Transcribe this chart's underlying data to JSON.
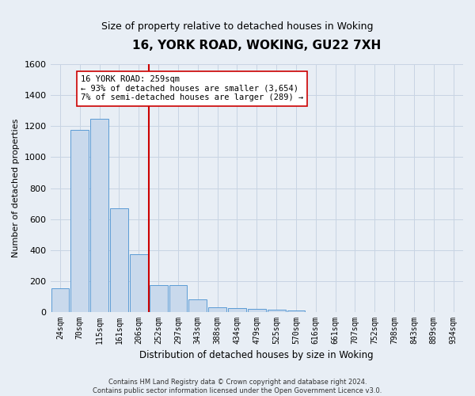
{
  "title": "16, YORK ROAD, WOKING, GU22 7XH",
  "subtitle": "Size of property relative to detached houses in Woking",
  "xlabel": "Distribution of detached houses by size in Woking",
  "ylabel": "Number of detached properties",
  "categories": [
    "24sqm",
    "70sqm",
    "115sqm",
    "161sqm",
    "206sqm",
    "252sqm",
    "297sqm",
    "343sqm",
    "388sqm",
    "434sqm",
    "479sqm",
    "525sqm",
    "570sqm",
    "616sqm",
    "661sqm",
    "707sqm",
    "752sqm",
    "798sqm",
    "843sqm",
    "889sqm",
    "934sqm"
  ],
  "values": [
    150,
    1175,
    1250,
    670,
    370,
    170,
    170,
    80,
    30,
    25,
    20,
    15,
    10,
    0,
    0,
    0,
    0,
    0,
    0,
    0,
    0
  ],
  "bar_color": "#c9d9ec",
  "bar_edgecolor": "#5b9bd5",
  "grid_color": "#c8d4e3",
  "background_color": "#e8eef5",
  "vline_x_index": 5,
  "vline_color": "#cc0000",
  "annotation_text": "16 YORK ROAD: 259sqm\n← 93% of detached houses are smaller (3,654)\n7% of semi-detached houses are larger (289) →",
  "annotation_box_facecolor": "#ffffff",
  "annotation_box_edgecolor": "#cc0000",
  "ylim": [
    0,
    1600
  ],
  "yticks": [
    0,
    200,
    400,
    600,
    800,
    1000,
    1200,
    1400,
    1600
  ],
  "footer_line1": "Contains HM Land Registry data © Crown copyright and database right 2024.",
  "footer_line2": "Contains public sector information licensed under the Open Government Licence v3.0.",
  "title_fontsize": 11,
  "subtitle_fontsize": 9,
  "ylabel_fontsize": 8,
  "xlabel_fontsize": 8.5,
  "annot_fontsize": 7.5,
  "xtick_fontsize": 7,
  "ytick_fontsize": 8,
  "footer_fontsize": 6
}
